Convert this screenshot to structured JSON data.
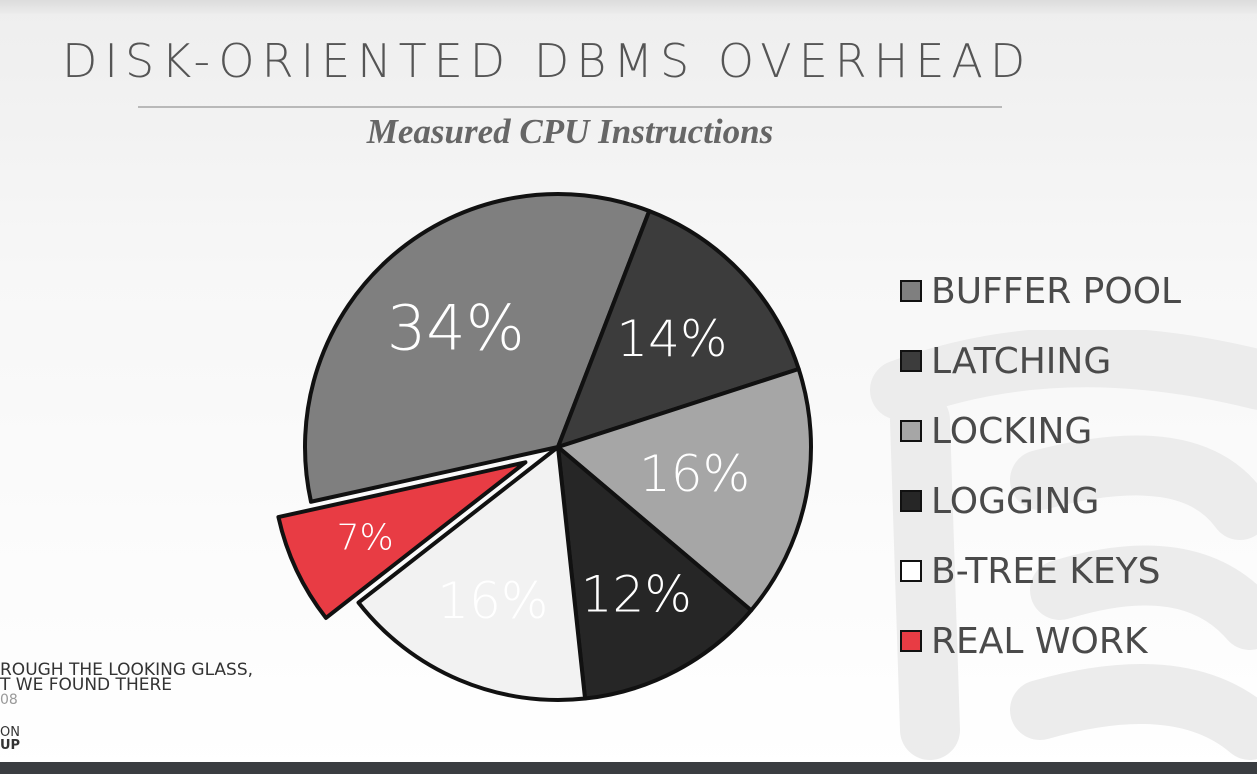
{
  "slide": {
    "title": "DISK-ORIENTED DBMS OVERHEAD",
    "subtitle": "Measured CPU Instructions",
    "citation_line1": "ROUGH THE LOOKING GLASS,",
    "citation_line2": "T WE FOUND THERE",
    "citation_line3": "08",
    "org_line1": "ON",
    "org_line2": "UP"
  },
  "chart_data": {
    "type": "pie",
    "title": "Measured CPU Instructions",
    "categories": [
      "BUFFER POOL",
      "LATCHING",
      "LOCKING",
      "LOGGING",
      "B-TREE KEYS",
      "REAL WORK"
    ],
    "values": [
      34,
      14,
      16,
      12,
      16,
      7
    ],
    "labels": [
      "34%",
      "14%",
      "16%",
      "12%",
      "16%",
      "7%"
    ],
    "colors": [
      "#7f7f7f",
      "#3c3c3c",
      "#a6a6a6",
      "#262626",
      "#f2f2f2",
      "#e83c44"
    ],
    "label_colors": [
      "#ffffff",
      "#ffffff",
      "#ffffff",
      "#ffffff",
      "#404040",
      "#ffffff"
    ],
    "exploded": [
      "REAL WORK"
    ],
    "legend_position": "right"
  }
}
